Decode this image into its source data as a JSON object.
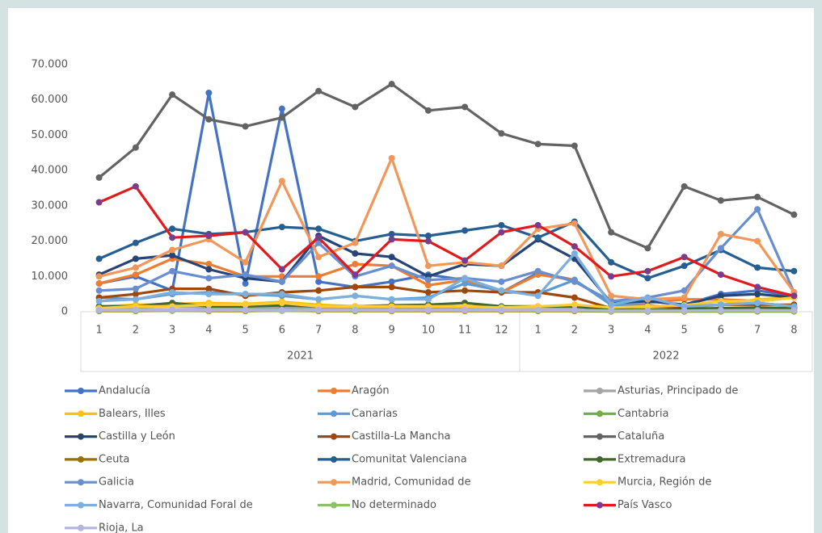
{
  "chart_data": {
    "type": "line",
    "categories": [
      "1",
      "2",
      "3",
      "4",
      "5",
      "6",
      "7",
      "8",
      "9",
      "10",
      "11",
      "12",
      "1",
      "2",
      "3",
      "4",
      "5",
      "6",
      "7",
      "8"
    ],
    "category_groups": [
      "2021",
      "2022"
    ],
    "ylim": [
      0,
      70000
    ],
    "yticks": [
      0,
      {
        "value": 10000,
        "label": "10.000"
      },
      {
        "value": 20000,
        "label": "20.000"
      },
      {
        "value": 30000,
        "label": "30.000"
      },
      {
        "value": 40000,
        "label": "40.000"
      },
      {
        "value": 50000,
        "label": "50.000"
      },
      {
        "value": 60000,
        "label": "60.000"
      },
      {
        "value": 70000,
        "label": "70.000"
      }
    ],
    "grid": false,
    "legend": "bottom",
    "series": [
      {
        "name": "Andalucía",
        "color": "#4472c4",
        "values": [
          8000,
          10000,
          6000,
          62000,
          8000,
          57500,
          8500,
          7000,
          8500,
          10500,
          9000,
          5500,
          11000,
          9000,
          2000,
          3000,
          2000,
          5000,
          6000,
          4500
        ]
      },
      {
        "name": "Aragón",
        "color": "#ed7d31",
        "values": [
          8000,
          10500,
          15000,
          13500,
          10000,
          10000,
          10000,
          13500,
          13000,
          7500,
          9000,
          5500,
          10500,
          9000,
          2000,
          2500,
          3500,
          3500,
          3000,
          4000
        ]
      },
      {
        "name": "Asturias, Principado de",
        "color": "#a5a5a5",
        "values": [
          1000,
          1200,
          1500,
          1200,
          1000,
          1300,
          1200,
          1000,
          1200,
          1000,
          1100,
          1000,
          1000,
          1200,
          500,
          700,
          600,
          800,
          700,
          800
        ]
      },
      {
        "name": "Balears, Illes",
        "color": "#ffc000",
        "values": [
          1500,
          2000,
          2200,
          2500,
          2200,
          2800,
          2000,
          1500,
          1800,
          1500,
          1500,
          1200,
          1200,
          2000,
          1000,
          1000,
          1200,
          2000,
          3500,
          4000
        ]
      },
      {
        "name": "Canarias",
        "color": "#5b9bd5",
        "values": [
          4000,
          3500,
          5000,
          5500,
          5000,
          4500,
          3500,
          4500,
          3500,
          4000,
          8000,
          6000,
          5000,
          9000,
          2000,
          1800,
          1200,
          2000,
          2500,
          1500
        ]
      },
      {
        "name": "Cantabria",
        "color": "#70ad47",
        "values": [
          500,
          500,
          600,
          500,
          500,
          600,
          500,
          500,
          500,
          500,
          400,
          400,
          400,
          500,
          300,
          300,
          300,
          400,
          300,
          300
        ]
      },
      {
        "name": "Castilla y León",
        "color": "#264478",
        "values": [
          10500,
          15000,
          16000,
          12000,
          9500,
          8500,
          21500,
          16500,
          15500,
          10000,
          13500,
          13000,
          20500,
          15000,
          2500,
          3000,
          2000,
          4500,
          5000,
          4000
        ]
      },
      {
        "name": "Castilla-La Mancha",
        "color": "#9e480e",
        "values": [
          4000,
          5000,
          6500,
          6500,
          4500,
          5500,
          6000,
          7000,
          7000,
          5500,
          6000,
          5500,
          5500,
          4000,
          1000,
          1500,
          1500,
          2000,
          2000,
          2000
        ]
      },
      {
        "name": "Cataluña",
        "color": "#636363",
        "values": [
          38000,
          46500,
          61500,
          54500,
          52500,
          55000,
          62500,
          58000,
          64500,
          57000,
          58000,
          50500,
          47500,
          47000,
          22500,
          18000,
          35500,
          31500,
          32500,
          27500
        ]
      },
      {
        "name": "Ceuta",
        "color": "#997300",
        "values": [
          200,
          200,
          300,
          200,
          200,
          300,
          200,
          200,
          200,
          200,
          200,
          200,
          200,
          200,
          100,
          100,
          100,
          100,
          100,
          100
        ]
      },
      {
        "name": "Comunitat Valenciana",
        "color": "#255e91",
        "values": [
          15000,
          19500,
          23500,
          22000,
          22500,
          24000,
          23500,
          20000,
          22000,
          21500,
          23000,
          24500,
          21000,
          25500,
          14000,
          9500,
          13000,
          17500,
          12500,
          11500
        ]
      },
      {
        "name": "Extremadura",
        "color": "#43682b",
        "values": [
          1500,
          1500,
          2500,
          1500,
          1500,
          1800,
          1500,
          1500,
          1800,
          2000,
          2500,
          1500,
          1500,
          1500,
          500,
          500,
          800,
          1000,
          1200,
          1000
        ]
      },
      {
        "name": "Galicia",
        "color": "#698ed0",
        "values": [
          6000,
          6500,
          11500,
          9500,
          10500,
          8500,
          19500,
          10000,
          13000,
          9000,
          9500,
          8500,
          11500,
          8500,
          3000,
          4000,
          6000,
          18000,
          29000,
          5500
        ]
      },
      {
        "name": "Madrid, Comunidad de",
        "color": "#f1975a",
        "values": [
          10000,
          12500,
          17500,
          20500,
          14000,
          37000,
          15500,
          19500,
          43500,
          13000,
          14000,
          13000,
          23500,
          25000,
          4500,
          3500,
          4000,
          22000,
          20000,
          5500
        ]
      },
      {
        "name": "Murcia, Región de",
        "color": "#ffcd33",
        "values": [
          1000,
          1500,
          1500,
          2000,
          2000,
          2500,
          1500,
          1500,
          1500,
          1500,
          1500,
          1200,
          1500,
          2000,
          1200,
          1500,
          1800,
          3000,
          3000,
          4000
        ]
      },
      {
        "name": "Navarra, Comunidad Foral de",
        "color": "#7cafdd",
        "values": [
          3000,
          3500,
          5500,
          5000,
          5000,
          5000,
          3500,
          4500,
          3500,
          3500,
          9500,
          6000,
          4500,
          16500,
          2000,
          4000,
          1500,
          2000,
          2500,
          1500
        ]
      },
      {
        "name": "No determinado",
        "color": "#8cc168",
        "values": [
          300,
          300,
          300,
          300,
          300,
          300,
          300,
          300,
          300,
          300,
          300,
          300,
          300,
          300,
          200,
          200,
          200,
          200,
          200,
          200
        ]
      },
      {
        "name": "País Vasco",
        "color": "#e31a1c",
        "marker_color": "#7a3c8c",
        "values": [
          31000,
          35500,
          21000,
          21500,
          22500,
          12000,
          21000,
          10500,
          20500,
          20000,
          14500,
          22500,
          24500,
          18500,
          10000,
          11500,
          15500,
          10500,
          7000,
          4500
        ]
      },
      {
        "name": "Rioja, La",
        "color": "#b4b4e0",
        "values": [
          500,
          500,
          600,
          500,
          500,
          500,
          500,
          500,
          500,
          500,
          500,
          500,
          500,
          500,
          300,
          300,
          300,
          400,
          400,
          400
        ]
      }
    ]
  }
}
